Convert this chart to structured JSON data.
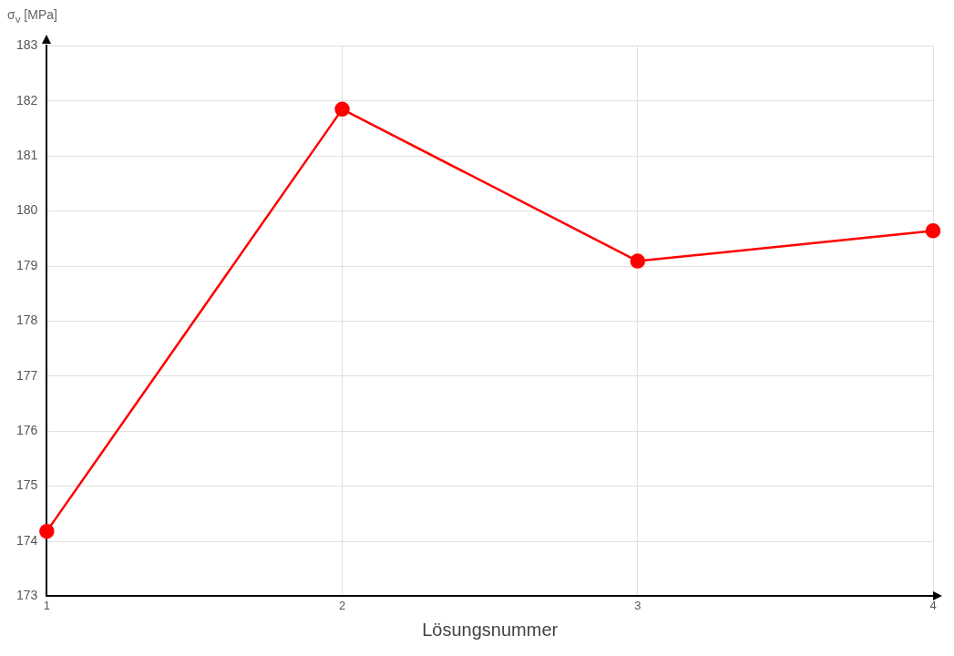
{
  "chart_data": {
    "type": "line",
    "xlabel": "Lösungsnummer",
    "ylabel": "σ$_{v}$ [MPa]",
    "x": [
      1,
      2,
      3,
      4
    ],
    "series": [
      {
        "color": "#ff0000",
        "values": [
          174.18,
          181.85,
          179.09,
          179.64
        ]
      }
    ],
    "xlim": [
      1,
      4
    ],
    "xticks": [
      1,
      2,
      3,
      4
    ],
    "ylim": [
      173,
      183
    ],
    "yticks": [
      173,
      174,
      175,
      176,
      177,
      178,
      179,
      180,
      181,
      182,
      183
    ],
    "grid": true,
    "legend": false,
    "marker": "circle",
    "line_style": "solid"
  }
}
